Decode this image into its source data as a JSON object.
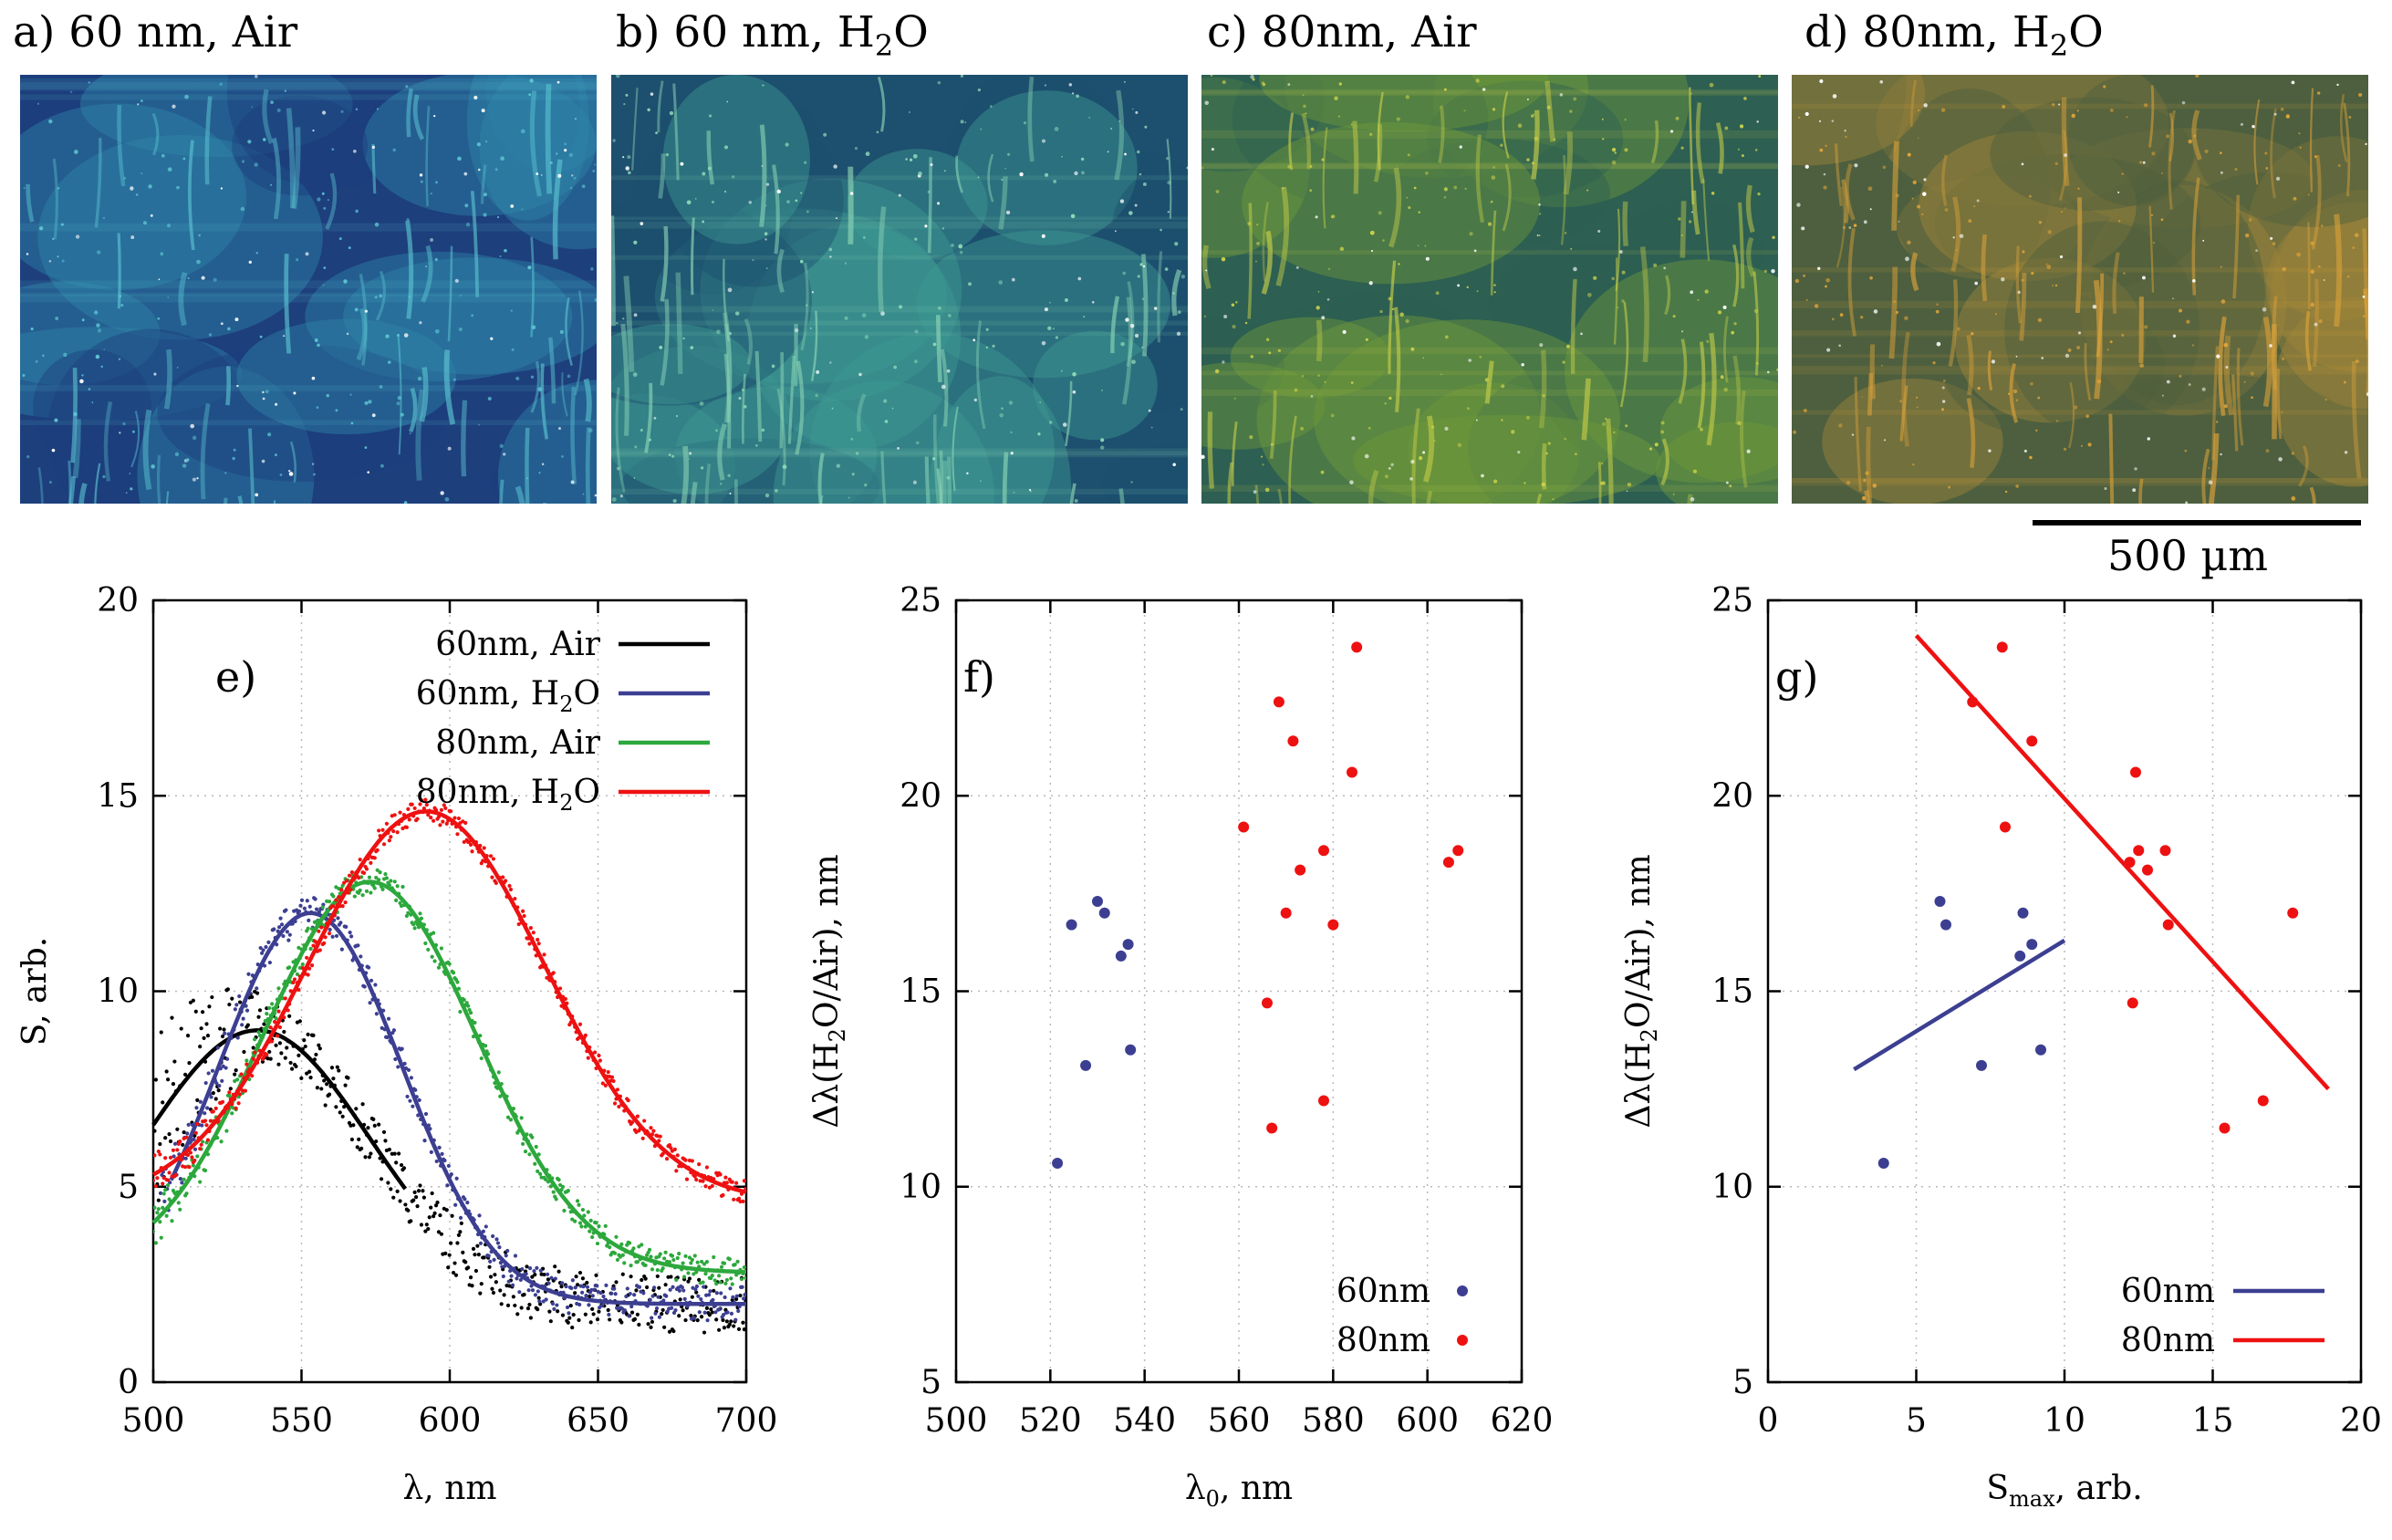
{
  "panels": {
    "a": {
      "title": "a) 60 nm, Air",
      "prefix": "a) 60 nm, Air",
      "sub": "",
      "suffix": "",
      "tone": "#2f86a8",
      "tone2": "#1d3f7c",
      "tone3": "#5cc4d2"
    },
    "b": {
      "title": "b) 60 nm, H2O",
      "prefix": "b) 60 nm, H",
      "sub": "2",
      "suffix": "O",
      "tone": "#3f9a93",
      "tone2": "#1d4f6e",
      "tone3": "#8fd8b8"
    },
    "c": {
      "title": "c) 80nm, Air",
      "prefix": "c) 80nm, Air",
      "sub": "",
      "suffix": "",
      "tone": "#6f9a3a",
      "tone2": "#2d5f52",
      "tone3": "#c9cf4a"
    },
    "d": {
      "title": "d) 80nm, H2O",
      "prefix": "d) 80nm, H",
      "sub": "2",
      "suffix": "O",
      "tone": "#a0853a",
      "tone2": "#4d5f3e",
      "tone3": "#e0a43a"
    }
  },
  "scale_bar": {
    "label": "500 µm"
  },
  "colors": {
    "black": "#000000",
    "blue": "#3c3f91",
    "green": "#2ca83c",
    "red": "#ee1111",
    "grid": "#b9b9b9"
  },
  "chart_data": [
    {
      "id": "e",
      "type": "line",
      "panel_label": "e)",
      "title": "",
      "xlabel": "λ, nm",
      "ylabel": "S, arb.",
      "xlim": [
        500,
        700
      ],
      "ylim": [
        0,
        20
      ],
      "xticks": [
        500,
        550,
        600,
        650,
        700
      ],
      "yticks": [
        0,
        5,
        10,
        15,
        20
      ],
      "grid": true,
      "legend_position": "top-right",
      "series": [
        {
          "name": "60nm, Air",
          "label_prefix": "60nm, Air",
          "label_sub": "",
          "label_suffix": "",
          "color": "#000000",
          "fit": {
            "baseline": 2.0,
            "amp": 7.0,
            "center": 535,
            "width": 38
          },
          "noise": 0.75,
          "scatter_range": [
            500,
            700
          ]
        },
        {
          "name": "60nm, H2O",
          "label_prefix": "60nm, H",
          "label_sub": "2",
          "label_suffix": "O",
          "color": "#3c3f91",
          "fit": {
            "baseline": 2.0,
            "amp": 10.0,
            "center": 553,
            "width": 31
          },
          "noise": 0.45,
          "scatter_range": [
            502,
            700
          ]
        },
        {
          "name": "80nm, Air",
          "label_prefix": "80nm, Air",
          "label_sub": "",
          "label_suffix": "",
          "color": "#2ca83c",
          "fit": {
            "baseline": 2.8,
            "amp": 10.0,
            "center": 573,
            "width": 36
          },
          "noise": 0.35,
          "scatter_range": [
            500,
            700
          ]
        },
        {
          "name": "80nm, H2O",
          "label_prefix": "80nm, H",
          "label_sub": "2",
          "label_suffix": "O",
          "color": "#ee1111",
          "fit": {
            "baseline": 4.6,
            "amp": 10.0,
            "center": 592,
            "width": 40
          },
          "noise": 0.3,
          "scatter_range": [
            500,
            700
          ]
        }
      ]
    },
    {
      "id": "f",
      "type": "scatter",
      "panel_label": "f)",
      "title": "",
      "xlabel": "λ0, nm",
      "xlabel_main": "λ",
      "xlabel_sub": "0",
      "xlabel_rest": ", nm",
      "ylabel": "Δλ(H2O/Air), nm",
      "xlim": [
        500,
        620
      ],
      "ylim": [
        5,
        25
      ],
      "xticks": [
        500,
        520,
        540,
        560,
        580,
        600,
        620
      ],
      "yticks": [
        5,
        10,
        15,
        20,
        25
      ],
      "grid": true,
      "legend_position": "bottom-right",
      "series": [
        {
          "name": "60nm",
          "color": "#3c3f91",
          "points": [
            [
              521.5,
              10.6
            ],
            [
              524.5,
              16.7
            ],
            [
              527.5,
              13.1
            ],
            [
              530,
              17.3
            ],
            [
              531.5,
              17.0
            ],
            [
              535,
              15.9
            ],
            [
              536.5,
              16.2
            ],
            [
              537,
              13.5
            ]
          ]
        },
        {
          "name": "80nm",
          "color": "#ee1111",
          "points": [
            [
              561,
              19.2
            ],
            [
              566,
              14.7
            ],
            [
              567,
              11.5
            ],
            [
              568.5,
              22.4
            ],
            [
              570,
              17.0
            ],
            [
              571.5,
              21.4
            ],
            [
              573,
              18.1
            ],
            [
              578,
              12.2
            ],
            [
              578,
              18.6
            ],
            [
              580,
              16.7
            ],
            [
              584,
              20.6
            ],
            [
              585,
              23.8
            ],
            [
              604.5,
              18.3
            ],
            [
              606.5,
              18.6
            ]
          ]
        }
      ]
    },
    {
      "id": "g",
      "type": "scatter",
      "panel_label": "g)",
      "title": "",
      "xlabel": "Smax, arb.",
      "xlabel_main": "S",
      "xlabel_sub": "max",
      "xlabel_rest": ", arb.",
      "ylabel": "Δλ(H2O/Air), nm",
      "xlim": [
        0,
        20
      ],
      "ylim": [
        5,
        25
      ],
      "xticks": [
        0,
        5,
        10,
        15,
        20
      ],
      "yticks": [
        5,
        10,
        15,
        20,
        25
      ],
      "grid": true,
      "legend_position": "bottom-right",
      "series": [
        {
          "name": "60nm",
          "color": "#3c3f91",
          "points": [
            [
              3.9,
              10.6
            ],
            [
              5.8,
              17.3
            ],
            [
              6.0,
              16.7
            ],
            [
              7.2,
              13.1
            ],
            [
              8.5,
              15.9
            ],
            [
              8.6,
              17.0
            ],
            [
              8.9,
              16.2
            ],
            [
              9.2,
              13.5
            ]
          ],
          "fit_line": [
            [
              2.9,
              13.0
            ],
            [
              10.0,
              16.3
            ]
          ]
        },
        {
          "name": "80nm",
          "color": "#ee1111",
          "points": [
            [
              6.9,
              22.4
            ],
            [
              7.9,
              23.8
            ],
            [
              8.0,
              19.2
            ],
            [
              8.9,
              21.4
            ],
            [
              12.2,
              18.3
            ],
            [
              12.3,
              14.7
            ],
            [
              12.4,
              20.6
            ],
            [
              12.5,
              18.6
            ],
            [
              12.8,
              18.1
            ],
            [
              13.4,
              18.6
            ],
            [
              13.5,
              16.7
            ],
            [
              15.4,
              11.5
            ],
            [
              16.7,
              12.2
            ],
            [
              17.7,
              17.0
            ]
          ],
          "fit_line": [
            [
              5.0,
              24.1
            ],
            [
              18.9,
              12.5
            ]
          ]
        }
      ]
    }
  ]
}
